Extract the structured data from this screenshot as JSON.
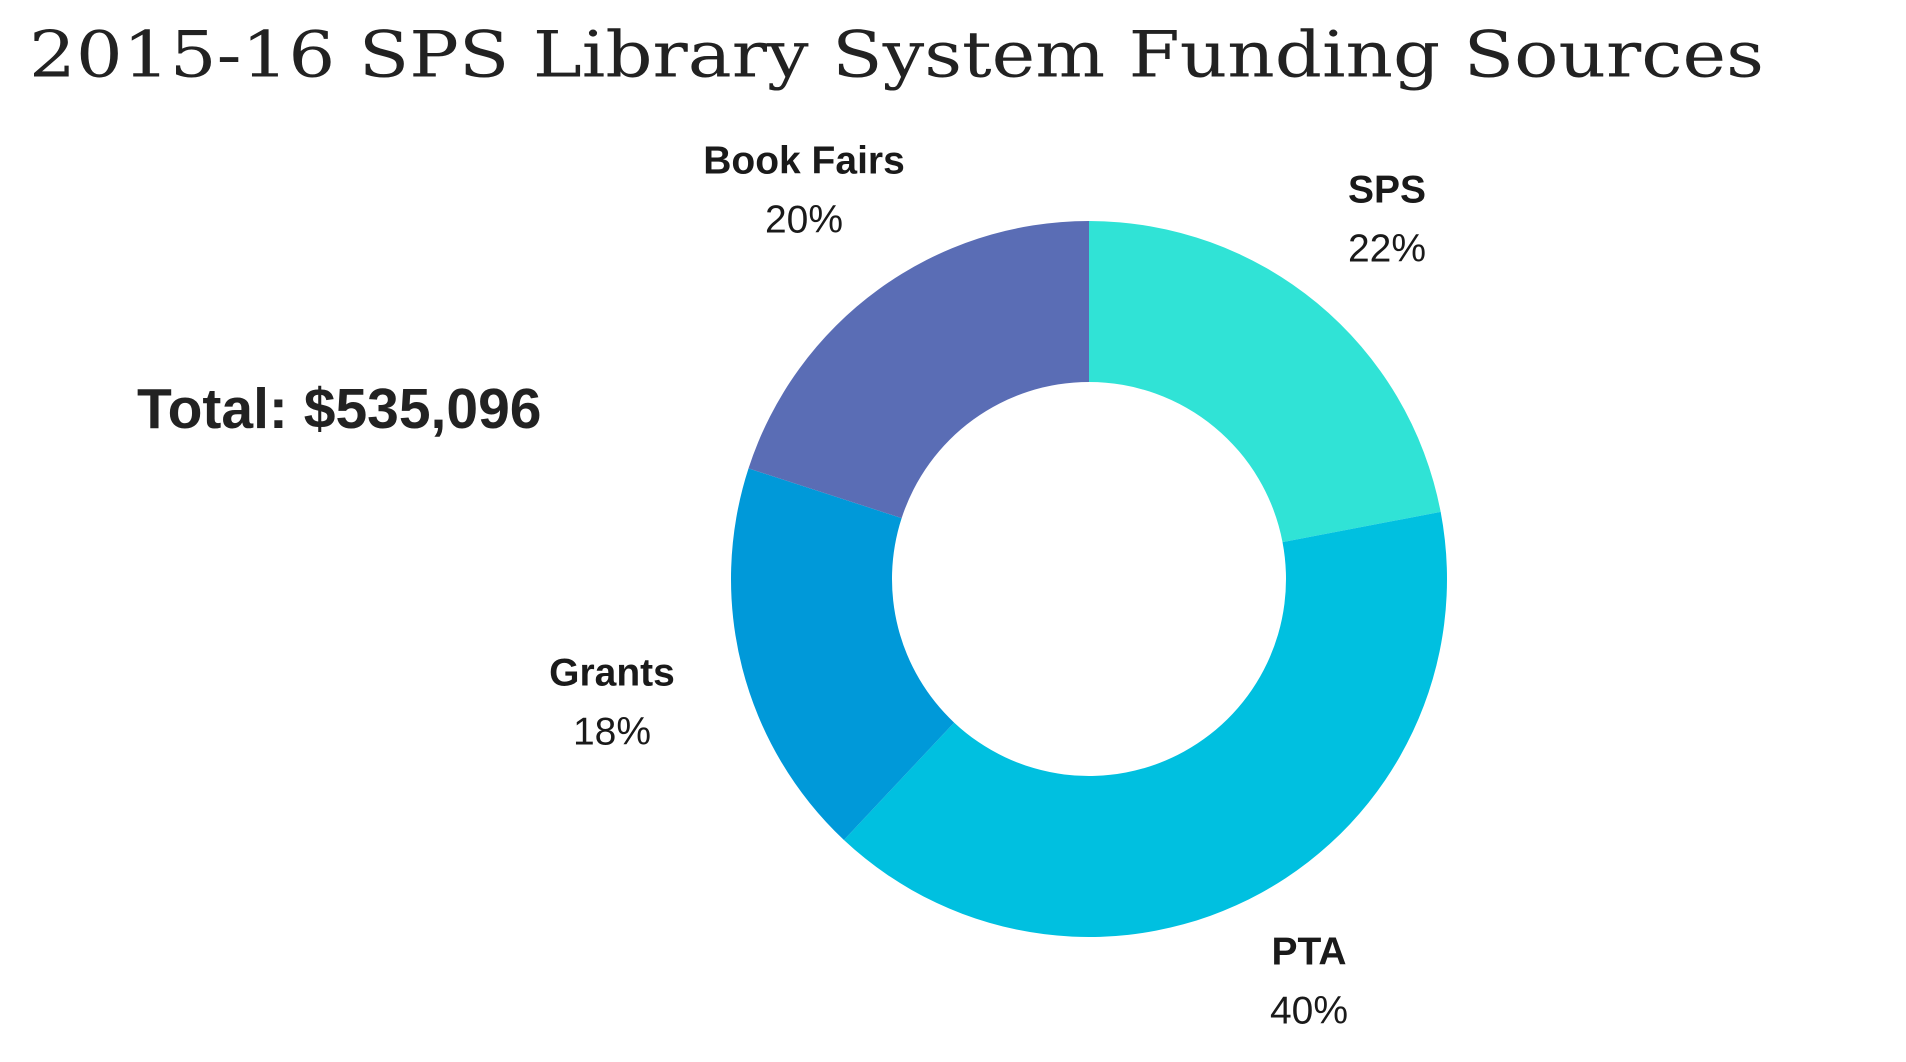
{
  "chart_data": {
    "type": "donut",
    "title": "2015-16 SPS Library System Funding Sources",
    "annotation": "Total: $535,096",
    "categories": [
      "SPS",
      "PTA",
      "Grants",
      "Book Fairs"
    ],
    "values": [
      22,
      40,
      18,
      20
    ],
    "value_labels": [
      "22%",
      "40%",
      "18%",
      "20%"
    ],
    "colors": [
      "#30e3d6",
      "#00c0e0",
      "#0099d9",
      "#5a6db5"
    ]
  }
}
